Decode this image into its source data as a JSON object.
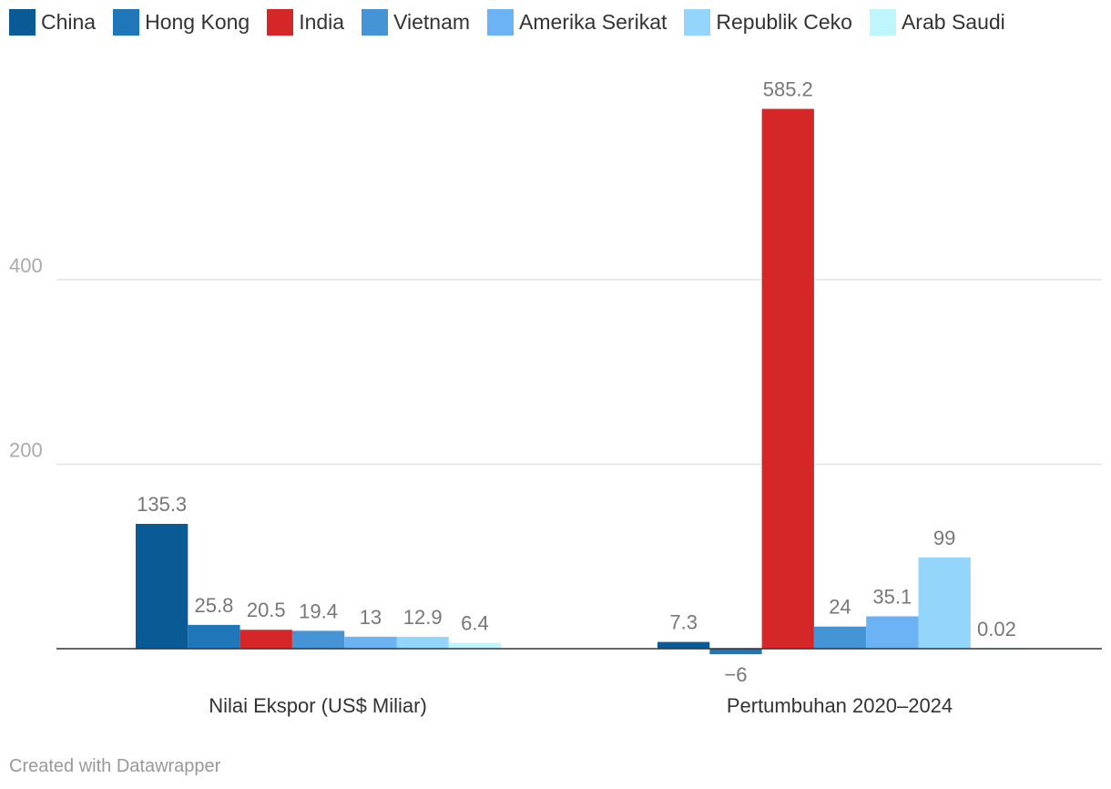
{
  "chart_data": {
    "type": "bar",
    "categories": [
      "Nilai Ekspor (US$ Miliar)",
      "Pertumbuhan 2020–2024"
    ],
    "series": [
      {
        "name": "China",
        "color": "#0a5a96",
        "values": [
          135.3,
          7.3
        ],
        "labels": [
          "135.3",
          "7.3"
        ]
      },
      {
        "name": "Hong Kong",
        "color": "#1f77b9",
        "values": [
          25.8,
          -6
        ],
        "labels": [
          "25.8",
          "−6"
        ]
      },
      {
        "name": "India",
        "color": "#d62728",
        "values": [
          20.5,
          585.2
        ],
        "labels": [
          "20.5",
          "585.2"
        ]
      },
      {
        "name": "Vietnam",
        "color": "#4594d6",
        "values": [
          19.4,
          24
        ],
        "labels": [
          "19.4",
          "24"
        ]
      },
      {
        "name": "Amerika Serikat",
        "color": "#6cb3f5",
        "values": [
          13,
          35.1
        ],
        "labels": [
          "13",
          "35.1"
        ]
      },
      {
        "name": "Republik Ceko",
        "color": "#94d6fb",
        "values": [
          12.9,
          99
        ],
        "labels": [
          "12.9",
          "99"
        ]
      },
      {
        "name": "Arab Saudi",
        "color": "#bff5fc",
        "values": [
          6.4,
          0.02
        ],
        "labels": [
          "6.4",
          "0.02"
        ]
      }
    ],
    "yticks": [
      200,
      400
    ],
    "ylim": [
      -6,
      600
    ],
    "grid": true,
    "legend": "top-left",
    "title": "",
    "xlabel": "",
    "ylabel": ""
  },
  "footer": {
    "credit": "Created with Datawrapper"
  }
}
